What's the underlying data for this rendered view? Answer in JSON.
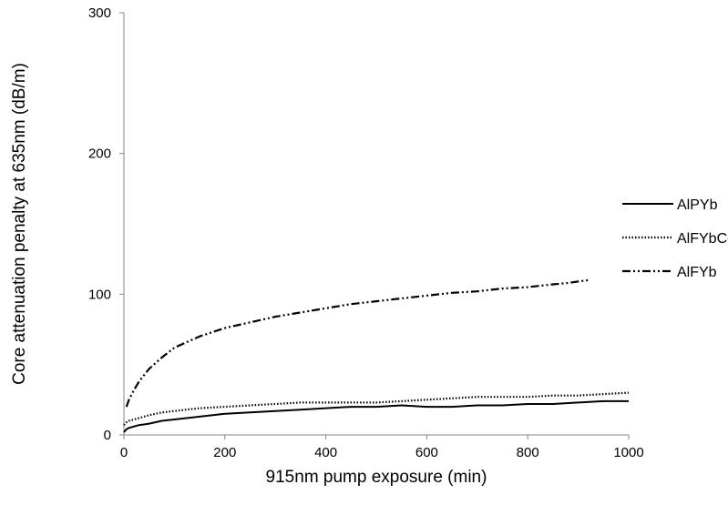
{
  "chart_data": {
    "type": "line",
    "title": "",
    "xlabel": "915nm pump exposure (min)",
    "ylabel": "Core attenuation penalty at  635nm (dB/m)",
    "xlim": [
      0,
      1000
    ],
    "ylim": [
      0,
      300
    ],
    "x_ticks": [
      0,
      200,
      400,
      600,
      800,
      1000
    ],
    "y_ticks": [
      0,
      100,
      200,
      300
    ],
    "grid": false,
    "legend_position": "right",
    "series": [
      {
        "name": "AlPYb",
        "style": "solid",
        "color": "#000000",
        "x": [
          0,
          5,
          10,
          20,
          30,
          50,
          75,
          100,
          150,
          200,
          250,
          300,
          350,
          400,
          450,
          500,
          550,
          600,
          650,
          700,
          750,
          800,
          850,
          900,
          950,
          1000
        ],
        "y": [
          2,
          4,
          5,
          6,
          7,
          8,
          10,
          11,
          13,
          15,
          16,
          17,
          18,
          19,
          20,
          20,
          21,
          20,
          20,
          21,
          21,
          22,
          22,
          23,
          24,
          24
        ]
      },
      {
        "name": "AlFYbCe",
        "style": "dotted",
        "color": "#000000",
        "x": [
          0,
          5,
          10,
          20,
          30,
          50,
          75,
          100,
          150,
          200,
          250,
          300,
          350,
          400,
          450,
          500,
          550,
          600,
          650,
          700,
          750,
          800,
          850,
          900,
          950,
          1000
        ],
        "y": [
          7,
          9,
          10,
          11,
          12,
          14,
          16,
          17,
          19,
          20,
          21,
          22,
          23,
          23,
          23,
          23,
          24,
          25,
          26,
          27,
          27,
          27,
          28,
          28,
          29,
          30
        ]
      },
      {
        "name": "AlFYb",
        "style": "dash-dot-dot",
        "color": "#000000",
        "x": [
          5,
          10,
          20,
          30,
          50,
          75,
          100,
          150,
          200,
          250,
          300,
          350,
          400,
          450,
          500,
          550,
          600,
          650,
          700,
          750,
          800,
          850,
          880,
          900,
          920
        ],
        "y": [
          20,
          25,
          32,
          38,
          47,
          55,
          62,
          70,
          76,
          80,
          84,
          87,
          90,
          93,
          95,
          97,
          99,
          101,
          102,
          104,
          105,
          107,
          108,
          109,
          110
        ]
      }
    ]
  }
}
